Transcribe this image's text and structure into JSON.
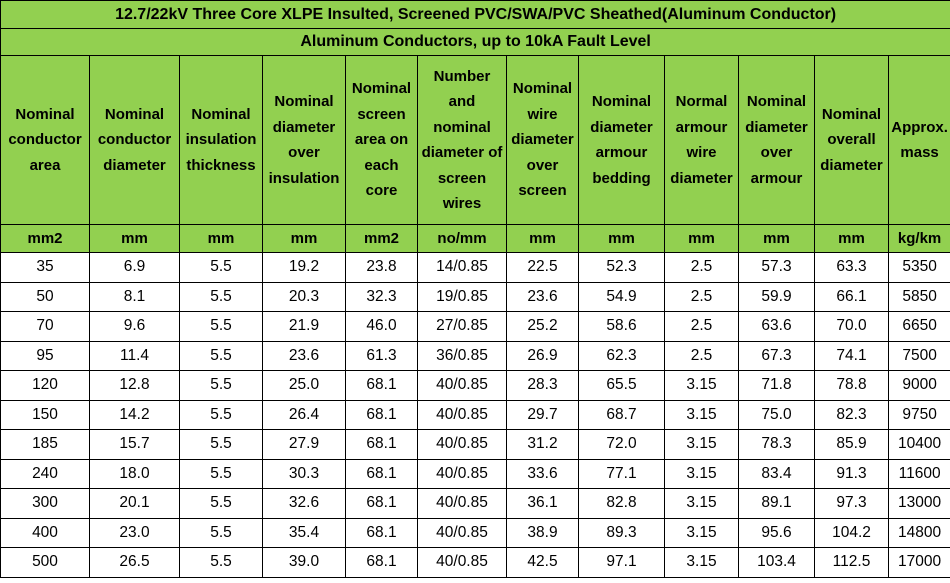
{
  "title": "12.7/22kV Three Core XLPE Insulted, Screened PVC/SWA/PVC Sheathed(Aluminum Conductor)",
  "subtitle": "Aluminum Conductors, up to 10kA Fault Level",
  "headers": [
    "Nominal conductor area",
    "Nominal conductor diameter",
    "Nominal insulation thickness",
    "Nominal diameter over insulation",
    "Nominal screen area on each core",
    "Number and nominal diameter of screen wires",
    "Nominal wire diameter over screen",
    "Nominal diameter armour bedding",
    "Normal armour wire diameter",
    "Nominal diameter over armour",
    "Nominal overall diameter",
    "Approx. mass"
  ],
  "units": [
    "mm2",
    "mm",
    "mm",
    "mm",
    "mm2",
    "no/mm",
    "mm",
    "mm",
    "mm",
    "mm",
    "mm",
    "kg/km"
  ],
  "rows": [
    [
      "35",
      "6.9",
      "5.5",
      "19.2",
      "23.8",
      "14/0.85",
      "22.5",
      "52.3",
      "2.5",
      "57.3",
      "63.3",
      "5350"
    ],
    [
      "50",
      "8.1",
      "5.5",
      "20.3",
      "32.3",
      "19/0.85",
      "23.6",
      "54.9",
      "2.5",
      "59.9",
      "66.1",
      "5850"
    ],
    [
      "70",
      "9.6",
      "5.5",
      "21.9",
      "46.0",
      "27/0.85",
      "25.2",
      "58.6",
      "2.5",
      "63.6",
      "70.0",
      "6650"
    ],
    [
      "95",
      "11.4",
      "5.5",
      "23.6",
      "61.3",
      "36/0.85",
      "26.9",
      "62.3",
      "2.5",
      "67.3",
      "74.1",
      "7500"
    ],
    [
      "120",
      "12.8",
      "5.5",
      "25.0",
      "68.1",
      "40/0.85",
      "28.3",
      "65.5",
      "3.15",
      "71.8",
      "78.8",
      "9000"
    ],
    [
      "150",
      "14.2",
      "5.5",
      "26.4",
      "68.1",
      "40/0.85",
      "29.7",
      "68.7",
      "3.15",
      "75.0",
      "82.3",
      "9750"
    ],
    [
      "185",
      "15.7",
      "5.5",
      "27.9",
      "68.1",
      "40/0.85",
      "31.2",
      "72.0",
      "3.15",
      "78.3",
      "85.9",
      "10400"
    ],
    [
      "240",
      "18.0",
      "5.5",
      "30.3",
      "68.1",
      "40/0.85",
      "33.6",
      "77.1",
      "3.15",
      "83.4",
      "91.3",
      "11600"
    ],
    [
      "300",
      "20.1",
      "5.5",
      "32.6",
      "68.1",
      "40/0.85",
      "36.1",
      "82.8",
      "3.15",
      "89.1",
      "97.3",
      "13000"
    ],
    [
      "400",
      "23.0",
      "5.5",
      "35.4",
      "68.1",
      "40/0.85",
      "38.9",
      "89.3",
      "3.15",
      "95.6",
      "104.2",
      "14800"
    ],
    [
      "500",
      "26.5",
      "5.5",
      "39.0",
      "68.1",
      "40/0.85",
      "42.5",
      "97.1",
      "3.15",
      "103.4",
      "112.5",
      "17000"
    ]
  ],
  "colors": {
    "header_bg": "#92d050",
    "body_bg": "#ffffff",
    "border": "#000000"
  }
}
